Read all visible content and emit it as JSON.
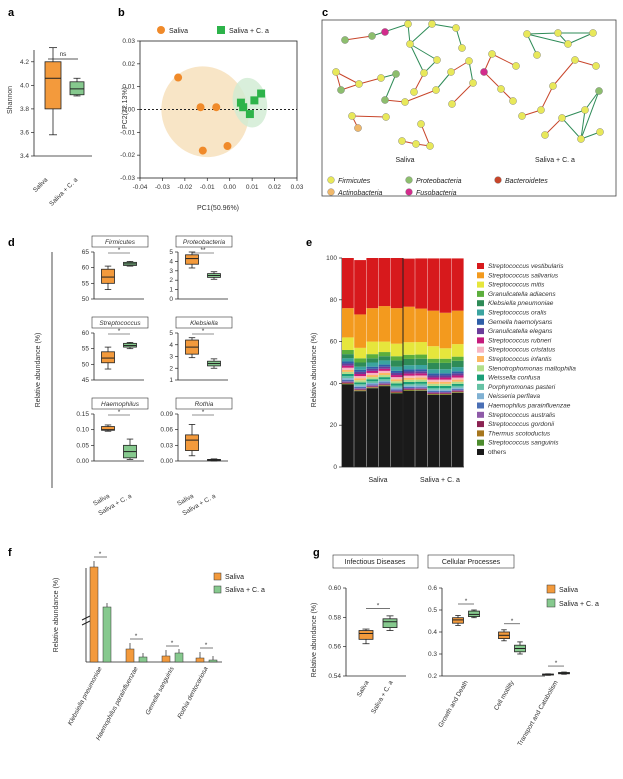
{
  "panels": {
    "a": {
      "letter": "a",
      "ylabel": "Shannon",
      "yticks": [
        "3.4",
        "3.6",
        "3.8",
        "4.0",
        "4.2"
      ],
      "sig": "ns",
      "groups": [
        "Saliva",
        "Saliva + C. a"
      ],
      "colors": [
        "#F39A3C",
        "#86C98E"
      ],
      "boxes": [
        {
          "min": 3.58,
          "q1": 3.8,
          "med": 4.06,
          "q3": 4.2,
          "max": 4.32
        },
        {
          "min": 3.91,
          "q1": 3.92,
          "med": 3.97,
          "q3": 4.03,
          "max": 4.06
        }
      ],
      "ylim": [
        3.4,
        4.3
      ]
    },
    "b": {
      "letter": "b",
      "xlabel": "PC1(50.96%)",
      "ylabel": "PC2(22.13%)",
      "legend": [
        "Saliva",
        "Saliva + C. a"
      ],
      "xticks": [
        "-0.04",
        "-0.03",
        "-0.02",
        "-0.01",
        "0.00",
        "0.01",
        "0.02",
        "0.03"
      ],
      "yticks": [
        "-0.03",
        "-0.02",
        "-0.01",
        "0.00",
        "0.01",
        "0.02",
        "0.03"
      ],
      "saliva_points": [
        [
          -0.023,
          0.014
        ],
        [
          -0.013,
          0.001
        ],
        [
          -0.006,
          0.001
        ],
        [
          -0.012,
          -0.018
        ],
        [
          -0.001,
          -0.016
        ]
      ],
      "ca_points": [
        [
          0.005,
          0.003
        ],
        [
          0.011,
          0.004
        ],
        [
          0.014,
          0.007
        ],
        [
          0.009,
          -0.002
        ],
        [
          0.006,
          0.001
        ]
      ]
    },
    "c": {
      "letter": "c",
      "network_labels": [
        "Saliva",
        "Saliva + C. a"
      ],
      "legend": [
        {
          "label": "Firmicutes",
          "color": "#E8E85A"
        },
        {
          "label": "Proteobacteria",
          "color": "#8DBE6E"
        },
        {
          "label": "Bacteroidetes",
          "color": "#C8452A"
        },
        {
          "label": "Actinobacteria",
          "color": "#F0B86A"
        },
        {
          "label": "Fusobacteria",
          "color": "#D22C8C"
        }
      ]
    },
    "d": {
      "letter": "d",
      "ylabel": "Relative abundance (%)",
      "groups": [
        "Saliva",
        "Saliva + C. a"
      ],
      "subplots": [
        {
          "title": "Firmicutes",
          "yticks": [
            "50",
            "55",
            "60",
            "65"
          ],
          "sig": "*"
        },
        {
          "title": "Proteobacteria",
          "yticks": [
            "0",
            "1",
            "2",
            "3",
            "4",
            "5"
          ],
          "sig": "**"
        },
        {
          "title": "Streptococcus",
          "yticks": [
            "45",
            "50",
            "55",
            "60"
          ],
          "sig": "*"
        },
        {
          "title": "Klebsiella",
          "yticks": [
            "1",
            "2",
            "3",
            "4",
            "5"
          ],
          "sig": "*"
        },
        {
          "title": "Haemophilus",
          "yticks": [
            "0.00",
            "0.05",
            "0.10",
            "0.15"
          ],
          "sig": "*"
        },
        {
          "title": "Rothia",
          "yticks": [
            "0.00",
            "0.03",
            "0.06",
            "0.09"
          ],
          "sig": "*"
        }
      ]
    },
    "e": {
      "letter": "e",
      "ylabel": "Relative abundance (%)",
      "yticks": [
        "0",
        "20",
        "40",
        "60",
        "80",
        "100"
      ],
      "groups": [
        "Saliva",
        "Saliva + C. a"
      ],
      "legend": [
        {
          "label": "Streptococcus vestibularis",
          "color": "#D7191C"
        },
        {
          "label": "Streptococcus salivarius",
          "color": "#F39A1E"
        },
        {
          "label": "Streptococcus mitis",
          "color": "#E6E63C"
        },
        {
          "label": "Granulicatella adiacens",
          "color": "#5CAE3C"
        },
        {
          "label": "Klebsiella pneumoniae",
          "color": "#2E8B57"
        },
        {
          "label": "Streptococcus oralis",
          "color": "#3BA4A0"
        },
        {
          "label": "Gemella haemolysans",
          "color": "#2F5FA8"
        },
        {
          "label": "Granulicatella elegans",
          "color": "#6A3D9A"
        },
        {
          "label": "Streptococcus rubneri",
          "color": "#C51B7D"
        },
        {
          "label": "Streptococcus cristatus",
          "color": "#F7B6C2"
        },
        {
          "label": "Streptococcus infantis",
          "color": "#FDB863"
        },
        {
          "label": "Stenotrophomonas maltophilia",
          "color": "#B2DF8A"
        },
        {
          "label": "Weissella confusa",
          "color": "#1B9E77"
        },
        {
          "label": "Porphyromonas pasteri",
          "color": "#66C2A5"
        },
        {
          "label": "Neisseria perflava",
          "color": "#80B1D3"
        },
        {
          "label": "Haemophilus parainfluenzae",
          "color": "#4A6FB5"
        },
        {
          "label": "Streptococcus australis",
          "color": "#8E5AA8"
        },
        {
          "label": "Streptococcus gordonii",
          "color": "#8B2252"
        },
        {
          "label": "Thermus scotoductus",
          "color": "#A6761D"
        },
        {
          "label": "Streptococcus sanguinis",
          "color": "#4D8C2E"
        },
        {
          "label": "others",
          "color": "#1A1A1A"
        }
      ]
    },
    "f": {
      "letter": "f",
      "ylabel": "Relative abundance (%)",
      "legend": [
        "Saliva",
        "Saliva + C. a"
      ],
      "categories": [
        "Klebsiella pneumoniae",
        "Haemophilus parainfluenzae",
        "Gemella sanguinis",
        "Rothia dentocariosa"
      ],
      "saliva": [
        3.8,
        0.09,
        0.04,
        0.03
      ],
      "ca": [
        2.2,
        0.03,
        0.06,
        0.01
      ],
      "sig": "*"
    },
    "g": {
      "letter": "g",
      "ylabel": "Relative abundance (%)",
      "left_title": "Infectious Diseases",
      "right_title": "Cellular Processes",
      "left_yticks": [
        "0.54",
        "0.56",
        "0.58",
        "0.60"
      ],
      "right_yticks": [
        "0.2",
        "0.3",
        "0.4",
        "0.5",
        "0.6"
      ],
      "left_groups": [
        "Saliva",
        "Saliva + C. a"
      ],
      "right_categories": [
        "Growth and Death",
        "Cell motility",
        "Transport and Catabolism"
      ],
      "legend": [
        "Saliva",
        "Saliva + C. a"
      ],
      "sig": "*"
    }
  }
}
